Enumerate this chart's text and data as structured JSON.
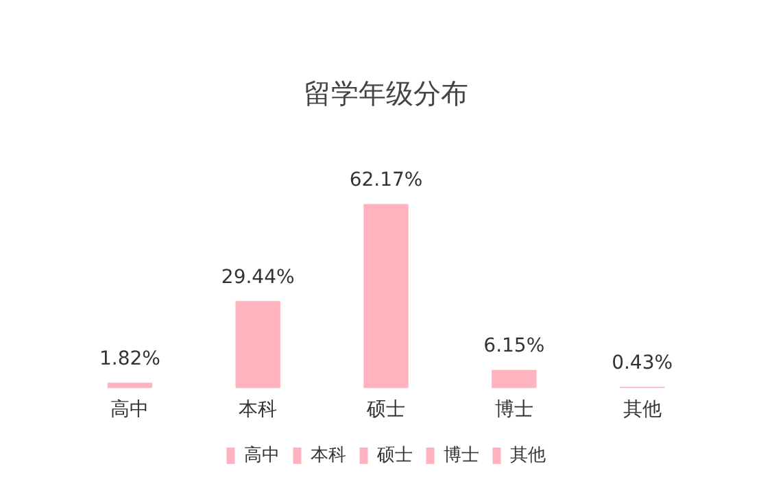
{
  "chart_data": {
    "type": "bar",
    "title": "留学年级分布",
    "categories": [
      "高中",
      "本科",
      "硕士",
      "博士",
      "其他"
    ],
    "series": [
      {
        "name": "高中",
        "color": "#ffb3bf",
        "values": [
          1.82,
          null,
          null,
          null,
          null
        ],
        "value_labels": [
          "1.82%",
          null,
          null,
          null,
          null
        ]
      },
      {
        "name": "本科",
        "color": "#ffb3bf",
        "values": [
          null,
          29.44,
          null,
          null,
          null
        ],
        "value_labels": [
          null,
          "29.44%",
          null,
          null,
          null
        ]
      },
      {
        "name": "硕士",
        "color": "#ffb3bf",
        "values": [
          null,
          null,
          62.17,
          null,
          null
        ],
        "value_labels": [
          null,
          null,
          "62.17%",
          null,
          null
        ]
      },
      {
        "name": "博士",
        "color": "#ffb3bf",
        "values": [
          null,
          null,
          null,
          6.15,
          null
        ],
        "value_labels": [
          null,
          null,
          null,
          "6.15%",
          null
        ]
      },
      {
        "name": "其他",
        "color": "#ffb3bf",
        "values": [
          null,
          null,
          null,
          null,
          0.43
        ],
        "value_labels": [
          null,
          null,
          null,
          null,
          "0.43%"
        ]
      }
    ],
    "legend": "bottom",
    "grid": false
  }
}
